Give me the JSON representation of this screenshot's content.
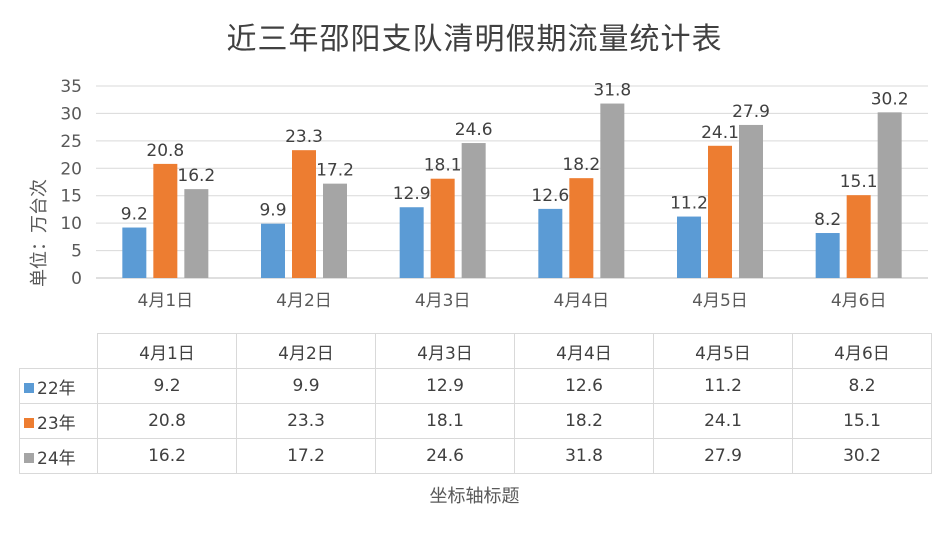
{
  "chart_data": {
    "type": "bar",
    "title": "近三年邵阳支队清明假期流量统计表",
    "ylabel": "单位：万台次",
    "xlabel": "坐标轴标题",
    "categories": [
      "4月1日",
      "4月2日",
      "4月3日",
      "4月4日",
      "4月5日",
      "4月6日"
    ],
    "series": [
      {
        "name": "22年",
        "color": "#5b9bd5",
        "values": [
          9.2,
          9.9,
          12.9,
          12.6,
          11.2,
          8.2
        ]
      },
      {
        "name": "23年",
        "color": "#ed7d31",
        "values": [
          20.8,
          23.3,
          18.1,
          18.2,
          24.1,
          15.1
        ]
      },
      {
        "name": "24年",
        "color": "#a5a5a5",
        "values": [
          16.2,
          17.2,
          24.6,
          31.8,
          27.9,
          30.2
        ]
      }
    ],
    "ylim": [
      0,
      35
    ],
    "yticks": [
      0,
      5,
      10,
      15,
      20,
      25,
      30,
      35
    ],
    "grid": true,
    "legend": "data-table"
  }
}
